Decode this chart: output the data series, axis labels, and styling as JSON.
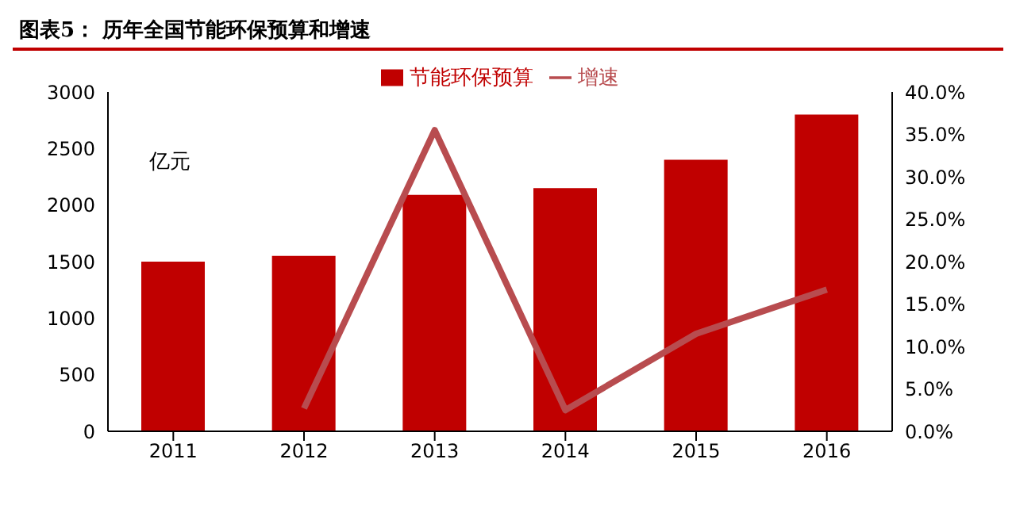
{
  "chart_data": {
    "type": "bar",
    "title": "图表5：  历年全国节能环保预算和增速",
    "ylabel": "亿元",
    "categories": [
      "2011",
      "2012",
      "2013",
      "2014",
      "2015",
      "2016"
    ],
    "series": [
      {
        "name": "节能环保预算",
        "color": "#c00000",
        "values": [
          1500,
          1550,
          2090,
          2150,
          2400,
          2800
        ]
      },
      {
        "name": "增速",
        "type": "line",
        "axis": "y2",
        "color": "#b84c4f",
        "values": [
          null,
          2.7,
          35.5,
          2.5,
          11.5,
          16.7
        ]
      }
    ],
    "ylim": [
      0,
      3000
    ],
    "yticks": [
      0,
      500,
      1000,
      1500,
      2000,
      2500,
      3000
    ],
    "y2lim": [
      0,
      40
    ],
    "y2ticks": [
      {
        "value": 0,
        "label": "0.0%"
      },
      {
        "value": 5,
        "label": "5.0%"
      },
      {
        "value": 10,
        "label": "10.0%"
      },
      {
        "value": 15,
        "label": "15.0%"
      },
      {
        "value": 20,
        "label": "20.0%"
      },
      {
        "value": 25,
        "label": "25.0%"
      },
      {
        "value": 30,
        "label": "30.0%"
      },
      {
        "value": 35,
        "label": "35.0%"
      },
      {
        "value": 40,
        "label": "40.0%"
      }
    ],
    "legend": "top",
    "grid": false,
    "marker": "none"
  }
}
